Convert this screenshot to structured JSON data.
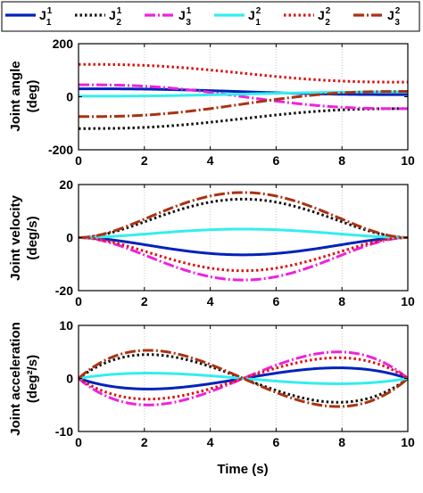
{
  "legend": {
    "items": [
      {
        "base": "J",
        "sup": "1",
        "sub": "1",
        "color": "#0022bb",
        "dash": "solid"
      },
      {
        "base": "J",
        "sup": "1",
        "sub": "2",
        "color": "#111111",
        "dash": "dot"
      },
      {
        "base": "J",
        "sup": "1",
        "sub": "3",
        "color": "#ee22dd",
        "dash": "dashdot"
      },
      {
        "base": "J",
        "sup": "2",
        "sub": "1",
        "color": "#33eeee",
        "dash": "solid"
      },
      {
        "base": "J",
        "sup": "2",
        "sub": "2",
        "color": "#dd1111",
        "dash": "dot"
      },
      {
        "base": "J",
        "sup": "2",
        "sub": "3",
        "color": "#aa3311",
        "dash": "dashdot"
      }
    ]
  },
  "xlabel": "Time (s)",
  "chart_data": [
    {
      "type": "line",
      "ylabel_lines": [
        "Joint angle",
        "(deg)"
      ],
      "xlim": [
        0,
        10
      ],
      "ylim": [
        -200,
        200
      ],
      "xticks": [
        0,
        2,
        4,
        6,
        8,
        10
      ],
      "yticks": [
        -200,
        0,
        200
      ],
      "grid": "vertical dotted",
      "series": [
        {
          "legend_index": 0,
          "kind": "angle",
          "start": 30,
          "end": 8
        },
        {
          "legend_index": 1,
          "kind": "angle",
          "start": -120,
          "end": -45
        },
        {
          "legend_index": 2,
          "kind": "angle",
          "start": 45,
          "end": -45
        },
        {
          "legend_index": 3,
          "kind": "angle",
          "start": 2,
          "end": 18
        },
        {
          "legend_index": 4,
          "kind": "angle",
          "start": 122,
          "end": 55
        },
        {
          "legend_index": 5,
          "kind": "angle",
          "start": -75,
          "end": 20
        }
      ]
    },
    {
      "type": "line",
      "ylabel_lines": [
        "Joint velocity",
        "(deg/s)"
      ],
      "xlim": [
        0,
        10
      ],
      "ylim": [
        -20,
        20
      ],
      "xticks": [
        0,
        2,
        4,
        6,
        8,
        10
      ],
      "yticks": [
        -20,
        0,
        20
      ],
      "grid": "vertical dotted",
      "series": [
        {
          "legend_index": 0,
          "kind": "velocity",
          "peak": -6.5
        },
        {
          "legend_index": 1,
          "kind": "velocity",
          "peak": 14.5
        },
        {
          "legend_index": 2,
          "kind": "velocity",
          "peak": -16
        },
        {
          "legend_index": 3,
          "kind": "velocity",
          "peak": 3.2
        },
        {
          "legend_index": 4,
          "kind": "velocity",
          "peak": -12.5
        },
        {
          "legend_index": 5,
          "kind": "velocity",
          "peak": 17
        }
      ]
    },
    {
      "type": "line",
      "ylabel_lines": [
        "Joint acceleration",
        "(deg²/s)"
      ],
      "xlim": [
        0,
        10
      ],
      "ylim": [
        -10,
        10
      ],
      "xticks": [
        0,
        2,
        4,
        6,
        8,
        10
      ],
      "yticks": [
        -10,
        0,
        10
      ],
      "grid": "vertical dotted",
      "series": [
        {
          "legend_index": 0,
          "kind": "accel",
          "amp": -2.0
        },
        {
          "legend_index": 1,
          "kind": "accel",
          "amp": 4.5
        },
        {
          "legend_index": 2,
          "kind": "accel",
          "amp": -5.0
        },
        {
          "legend_index": 3,
          "kind": "accel",
          "amp": 1.0
        },
        {
          "legend_index": 4,
          "kind": "accel",
          "amp": -3.9
        },
        {
          "legend_index": 5,
          "kind": "accel",
          "amp": 5.3
        }
      ]
    }
  ]
}
